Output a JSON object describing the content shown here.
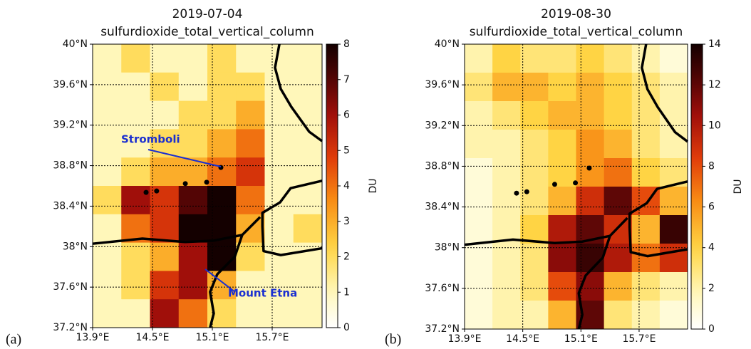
{
  "chart_data": [
    {
      "type": "heatmap",
      "title": "2019-07-04",
      "subtitle": "sulfurdioxide_total_vertical_column",
      "panel_label": "(a)",
      "xlim": [
        13.9,
        16.2
      ],
      "ylim": [
        37.2,
        40
      ],
      "xticks": [
        {
          "value": 13.9,
          "label": "13.9°E"
        },
        {
          "value": 14.5,
          "label": "14.5°E"
        },
        {
          "value": 15.1,
          "label": "15.1°E"
        },
        {
          "value": 15.7,
          "label": "15.7°E"
        }
      ],
      "yticks": [
        {
          "value": 37.2,
          "label": "37.2°N"
        },
        {
          "value": 37.6,
          "label": "37.6°N"
        },
        {
          "value": 38,
          "label": "38°N"
        },
        {
          "value": 38.4,
          "label": "38.4°N"
        },
        {
          "value": 38.8,
          "label": "38.8°N"
        },
        {
          "value": 39.2,
          "label": "39.2°N"
        },
        {
          "value": 39.6,
          "label": "39.6°N"
        },
        {
          "value": 40,
          "label": "40°N"
        }
      ],
      "grid": true,
      "colormap": "hot_r",
      "colorbar_label": "DU",
      "clim": [
        0,
        8
      ],
      "cticks": [
        0,
        1,
        2,
        3,
        4,
        5,
        6,
        7,
        8
      ],
      "annotations": [
        "Stromboli",
        "Mount Etna"
      ],
      "z": [
        [
          1,
          2,
          1,
          1,
          2,
          1,
          1,
          1
        ],
        [
          1,
          1,
          2,
          1,
          2,
          2,
          1,
          1
        ],
        [
          1,
          1,
          1,
          2,
          2,
          3,
          1,
          1
        ],
        [
          1,
          1,
          2,
          2,
          3,
          4,
          1,
          1
        ],
        [
          1,
          2,
          3,
          3,
          4,
          5,
          1,
          1
        ],
        [
          2,
          6,
          5,
          7,
          8,
          4,
          1,
          1
        ],
        [
          1,
          4,
          5,
          8,
          8,
          3,
          1,
          2
        ],
        [
          1,
          2,
          3,
          6,
          8,
          2,
          1,
          1
        ],
        [
          1,
          2,
          5,
          6,
          3,
          1,
          1,
          1
        ],
        [
          1,
          1,
          6,
          4,
          2,
          1,
          1,
          1
        ]
      ]
    },
    {
      "type": "heatmap",
      "title": "2019-08-30",
      "subtitle": "sulfurdioxide_total_vertical_column",
      "panel_label": "(b)",
      "xlim": [
        13.9,
        16.2
      ],
      "ylim": [
        37.2,
        40
      ],
      "xticks": [
        {
          "value": 13.9,
          "label": "13.9°E"
        },
        {
          "value": 14.5,
          "label": "14.5°E"
        },
        {
          "value": 15.1,
          "label": "15.1°E"
        },
        {
          "value": 15.7,
          "label": "15.7°E"
        }
      ],
      "yticks": [
        {
          "value": 37.2,
          "label": "37.2°N"
        },
        {
          "value": 37.6,
          "label": "37.6°N"
        },
        {
          "value": 38,
          "label": "38°N"
        },
        {
          "value": 38.4,
          "label": "38.4°N"
        },
        {
          "value": 38.8,
          "label": "38.8°N"
        },
        {
          "value": 39.2,
          "label": "39.2°N"
        },
        {
          "value": 39.6,
          "label": "39.6°N"
        },
        {
          "value": 40,
          "label": "40°N"
        }
      ],
      "grid": true,
      "colormap": "hot_r",
      "colorbar_label": "DU",
      "clim": [
        0,
        14
      ],
      "cticks": [
        0,
        2,
        4,
        6,
        8,
        10,
        12,
        14
      ],
      "z": [
        [
          2,
          4,
          3,
          3,
          4,
          3,
          2,
          1
        ],
        [
          3,
          5,
          5,
          4,
          5,
          4,
          3,
          2
        ],
        [
          2,
          3,
          4,
          5,
          5,
          4,
          3,
          2
        ],
        [
          2,
          2,
          3,
          4,
          6,
          5,
          3,
          2
        ],
        [
          1,
          2,
          3,
          4,
          6,
          7,
          4,
          3
        ],
        [
          1,
          2,
          3,
          5,
          9,
          12,
          8,
          5
        ],
        [
          1,
          2,
          4,
          10,
          12,
          9,
          5,
          13
        ],
        [
          1,
          2,
          3,
          11,
          13,
          10,
          7,
          9
        ],
        [
          1,
          2,
          3,
          8,
          11,
          5,
          3,
          2
        ],
        [
          1,
          2,
          2,
          5,
          12,
          3,
          2,
          1
        ]
      ]
    }
  ]
}
